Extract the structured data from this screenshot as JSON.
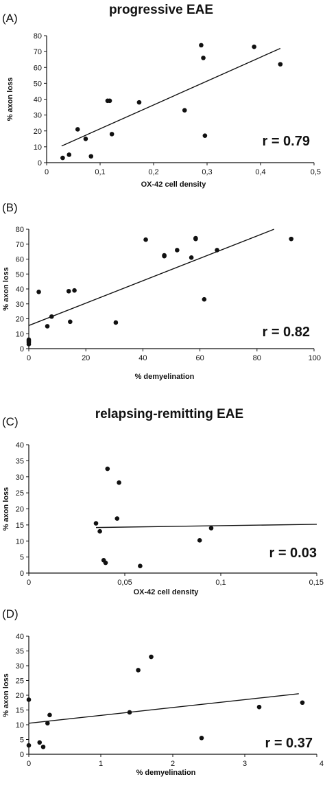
{
  "headings": {
    "progressive": "progressive EAE",
    "relapsing": "relapsing-remitting EAE"
  },
  "chart_data": [
    {
      "type": "scatter",
      "panel": "(A)",
      "xlabel": "OX-42 cell density",
      "ylabel": "% axon loss",
      "xlim": [
        0,
        0.5
      ],
      "ylim": [
        0,
        80
      ],
      "xticks": [
        0,
        0.1,
        0.2,
        0.3,
        0.4,
        0.5
      ],
      "xtick_labels": [
        "0",
        "0,1",
        "0,2",
        "0,3",
        "0,4",
        "0,5"
      ],
      "yticks": [
        0,
        10,
        20,
        30,
        40,
        50,
        60,
        70,
        80
      ],
      "ytick_labels": [
        "0",
        "10",
        "20",
        "30",
        "40",
        "50",
        "60",
        "70",
        "80"
      ],
      "points": [
        [
          0.03,
          3
        ],
        [
          0.042,
          5
        ],
        [
          0.058,
          21
        ],
        [
          0.073,
          15
        ],
        [
          0.083,
          4
        ],
        [
          0.114,
          39
        ],
        [
          0.118,
          39
        ],
        [
          0.122,
          18
        ],
        [
          0.173,
          38
        ],
        [
          0.258,
          33
        ],
        [
          0.289,
          74
        ],
        [
          0.293,
          66
        ],
        [
          0.296,
          17
        ],
        [
          0.388,
          73
        ],
        [
          0.437,
          62
        ]
      ],
      "fit": [
        [
          0.028,
          10.5
        ],
        [
          0.437,
          72
        ]
      ],
      "r_label": "r = 0.79"
    },
    {
      "type": "scatter",
      "panel": "(B)",
      "xlabel": "% demyelination",
      "ylabel": "% axon loss",
      "xlim": [
        0,
        100
      ],
      "ylim": [
        0,
        80
      ],
      "xticks": [
        0,
        20,
        40,
        60,
        80,
        100
      ],
      "xtick_labels": [
        "0",
        "20",
        "40",
        "60",
        "80",
        "100"
      ],
      "yticks": [
        0,
        10,
        20,
        30,
        40,
        50,
        60,
        70,
        80
      ],
      "ytick_labels": [
        "0",
        "10",
        "20",
        "30",
        "40",
        "50",
        "60",
        "70",
        "80"
      ],
      "points": [
        [
          0,
          3
        ],
        [
          0,
          4
        ],
        [
          0,
          5
        ],
        [
          0,
          6
        ],
        [
          3.5,
          38
        ],
        [
          6.5,
          15
        ],
        [
          8,
          21.5
        ],
        [
          14,
          38.5
        ],
        [
          14.5,
          18
        ],
        [
          16,
          39
        ],
        [
          30.5,
          17.5
        ],
        [
          41,
          73
        ],
        [
          47.5,
          62
        ],
        [
          47.5,
          62.5
        ],
        [
          52,
          66
        ],
        [
          57,
          61
        ],
        [
          58.5,
          74
        ],
        [
          58.5,
          73.5
        ],
        [
          61.5,
          33
        ],
        [
          66,
          66
        ],
        [
          92,
          73.5
        ]
      ],
      "fit": [
        [
          0,
          15.5
        ],
        [
          86,
          80
        ]
      ],
      "r_label": "r = 0.82"
    },
    {
      "type": "scatter",
      "panel": "(C)",
      "xlabel": "OX-42 cell density",
      "ylabel": "% axon loss",
      "xlim": [
        0,
        0.15
      ],
      "ylim": [
        0,
        40
      ],
      "xticks": [
        0,
        0.05,
        0.1,
        0.15
      ],
      "xtick_labels": [
        "0",
        "0,05",
        "0,1",
        "0,15"
      ],
      "yticks": [
        0,
        5,
        10,
        15,
        20,
        25,
        30,
        35,
        40
      ],
      "ytick_labels": [
        "0",
        "5",
        "10",
        "15",
        "20",
        "25",
        "30",
        "35",
        "40"
      ],
      "points": [
        [
          0.035,
          15.5
        ],
        [
          0.037,
          13
        ],
        [
          0.039,
          4
        ],
        [
          0.04,
          3.2
        ],
        [
          0.041,
          32.5
        ],
        [
          0.046,
          17
        ],
        [
          0.047,
          28.2
        ],
        [
          0.058,
          2.2
        ],
        [
          0.089,
          10.2
        ],
        [
          0.095,
          14
        ]
      ],
      "fit": [
        [
          0.035,
          14.2
        ],
        [
          0.15,
          15.2
        ]
      ],
      "r_label": "r = 0.03"
    },
    {
      "type": "scatter",
      "panel": "(D)",
      "xlabel": "% demyelination",
      "ylabel": "% axon loss",
      "xlim": [
        0,
        4
      ],
      "ylim": [
        0,
        40
      ],
      "xticks": [
        0,
        1,
        2,
        3,
        4
      ],
      "xtick_labels": [
        "0",
        "1",
        "2",
        "3",
        "4"
      ],
      "yticks": [
        0,
        5,
        10,
        15,
        20,
        25,
        30,
        35,
        40
      ],
      "ytick_labels": [
        "0",
        "5",
        "10",
        "15",
        "20",
        "25",
        "30",
        "35",
        "40"
      ],
      "points": [
        [
          0,
          3
        ],
        [
          0,
          18.5
        ],
        [
          0.15,
          4
        ],
        [
          0.2,
          2.5
        ],
        [
          0.26,
          10.5
        ],
        [
          0.29,
          13.3
        ],
        [
          1.4,
          14.2
        ],
        [
          1.52,
          28.5
        ],
        [
          1.7,
          33
        ],
        [
          2.4,
          5.5
        ],
        [
          3.2,
          16
        ],
        [
          3.8,
          17.5
        ]
      ],
      "fit": [
        [
          0,
          10.5
        ],
        [
          3.75,
          20.5
        ]
      ],
      "r_label": "r = 0.37"
    }
  ]
}
